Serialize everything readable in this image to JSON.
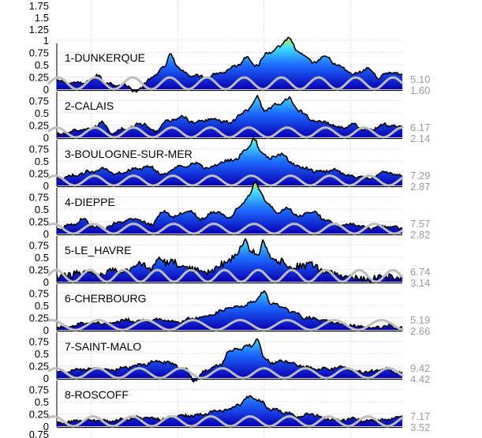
{
  "colors": {
    "fill_low": "#0a00b4",
    "fill_mid": "#1e6cff",
    "fill_high": "#40e0ff",
    "fill_peak": "#f0f000",
    "signal_line": "#000000",
    "tide_line": "#bdbdbd",
    "grid": "#c8c8c8",
    "right_values": "#9a9a9a"
  },
  "chart_data": {
    "type": "area",
    "layout": "vertically stacked panels",
    "grid": true,
    "x_gridlines_at": [
      0.1,
      0.35,
      0.6,
      0.85
    ],
    "top_axis_ticks": [
      "1.75",
      "1.5",
      "1.25"
    ],
    "panels": [
      {
        "station": "1-DUNKERQUE",
        "yticks": [
          "1",
          "0.75",
          "0.5",
          "0.25",
          "0"
        ],
        "ylim": [
          0,
          1.05
        ],
        "right_values": [
          "5.10",
          "1.60"
        ],
        "tide_cycles": 9.5,
        "tide_phase": 0.0,
        "tide_amplitude": 0.12,
        "keypoints": [
          [
            0,
            0.15
          ],
          [
            0.07,
            0.12
          ],
          [
            0.1,
            0.17
          ],
          [
            0.12,
            0.3
          ],
          [
            0.14,
            0.12
          ],
          [
            0.2,
            0.08
          ],
          [
            0.23,
            -0.05
          ],
          [
            0.27,
            0.2
          ],
          [
            0.31,
            0.45
          ],
          [
            0.33,
            0.7
          ],
          [
            0.35,
            0.45
          ],
          [
            0.38,
            0.3
          ],
          [
            0.43,
            0.25
          ],
          [
            0.48,
            0.35
          ],
          [
            0.52,
            0.48
          ],
          [
            0.55,
            0.65
          ],
          [
            0.58,
            0.48
          ],
          [
            0.61,
            0.75
          ],
          [
            0.64,
            0.85
          ],
          [
            0.67,
            1.05
          ],
          [
            0.7,
            0.75
          ],
          [
            0.74,
            0.55
          ],
          [
            0.78,
            0.65
          ],
          [
            0.82,
            0.45
          ],
          [
            0.86,
            0.3
          ],
          [
            0.9,
            0.42
          ],
          [
            0.93,
            0.25
          ],
          [
            0.97,
            0.35
          ],
          [
            1,
            0.3
          ]
        ]
      },
      {
        "station": "2-CALAIS",
        "yticks": [
          "0.75",
          "0.5",
          "0.25",
          "0"
        ],
        "ylim": [
          0,
          0.8
        ],
        "right_values": [
          "6.17",
          "2.14"
        ],
        "tide_cycles": 9.2,
        "tide_phase": 0.3,
        "tide_amplitude": 0.1,
        "keypoints": [
          [
            0,
            0.05
          ],
          [
            0.05,
            0.12
          ],
          [
            0.1,
            0.18
          ],
          [
            0.13,
            0.3
          ],
          [
            0.16,
            0.1
          ],
          [
            0.2,
            0.18
          ],
          [
            0.25,
            0.28
          ],
          [
            0.28,
            0.12
          ],
          [
            0.32,
            0.32
          ],
          [
            0.36,
            0.42
          ],
          [
            0.4,
            0.3
          ],
          [
            0.45,
            0.38
          ],
          [
            0.5,
            0.3
          ],
          [
            0.53,
            0.45
          ],
          [
            0.55,
            0.55
          ],
          [
            0.58,
            0.82
          ],
          [
            0.6,
            0.55
          ],
          [
            0.64,
            0.68
          ],
          [
            0.67,
            0.8
          ],
          [
            0.7,
            0.55
          ],
          [
            0.74,
            0.35
          ],
          [
            0.78,
            0.3
          ],
          [
            0.82,
            0.2
          ],
          [
            0.86,
            0.25
          ],
          [
            0.9,
            0.15
          ],
          [
            0.95,
            0.25
          ],
          [
            1,
            0.22
          ]
        ]
      },
      {
        "station": "3-BOULOGNE-SUR-MER",
        "yticks": [
          "0.75",
          "0.5",
          "0.25",
          "0"
        ],
        "ylim": [
          0,
          0.8
        ],
        "right_values": [
          "7.29",
          "2.87"
        ],
        "tide_cycles": 9.0,
        "tide_phase": 0.6,
        "tide_amplitude": 0.1,
        "keypoints": [
          [
            0,
            0.12
          ],
          [
            0.05,
            0.2
          ],
          [
            0.1,
            0.28
          ],
          [
            0.13,
            0.35
          ],
          [
            0.17,
            0.25
          ],
          [
            0.22,
            0.32
          ],
          [
            0.27,
            0.38
          ],
          [
            0.31,
            0.22
          ],
          [
            0.35,
            0.38
          ],
          [
            0.4,
            0.45
          ],
          [
            0.44,
            0.35
          ],
          [
            0.48,
            0.48
          ],
          [
            0.52,
            0.55
          ],
          [
            0.55,
            0.75
          ],
          [
            0.57,
            0.95
          ],
          [
            0.59,
            0.7
          ],
          [
            0.62,
            0.55
          ],
          [
            0.65,
            0.65
          ],
          [
            0.68,
            0.45
          ],
          [
            0.72,
            0.35
          ],
          [
            0.76,
            0.28
          ],
          [
            0.8,
            0.32
          ],
          [
            0.85,
            0.2
          ],
          [
            0.9,
            0.15
          ],
          [
            0.95,
            0.28
          ],
          [
            1,
            0.2
          ]
        ]
      },
      {
        "station": "4-DIEPPE",
        "yticks": [
          "0.75",
          "0.5",
          "0.25",
          "0"
        ],
        "ylim": [
          0,
          0.8
        ],
        "right_values": [
          "7.57",
          "2.82"
        ],
        "tide_cycles": 8.8,
        "tide_phase": 0.9,
        "tide_amplitude": 0.1,
        "keypoints": [
          [
            0,
            0.08
          ],
          [
            0.04,
            0.18
          ],
          [
            0.08,
            0.3
          ],
          [
            0.1,
            0.15
          ],
          [
            0.14,
            0.12
          ],
          [
            0.18,
            0.22
          ],
          [
            0.23,
            0.3
          ],
          [
            0.27,
            0.18
          ],
          [
            0.31,
            0.45
          ],
          [
            0.34,
            0.35
          ],
          [
            0.38,
            0.48
          ],
          [
            0.42,
            0.3
          ],
          [
            0.46,
            0.45
          ],
          [
            0.5,
            0.32
          ],
          [
            0.53,
            0.55
          ],
          [
            0.56,
            0.82
          ],
          [
            0.575,
            1.05
          ],
          [
            0.59,
            0.85
          ],
          [
            0.61,
            0.6
          ],
          [
            0.64,
            0.45
          ],
          [
            0.67,
            0.5
          ],
          [
            0.7,
            0.35
          ],
          [
            0.74,
            0.45
          ],
          [
            0.78,
            0.28
          ],
          [
            0.82,
            0.15
          ],
          [
            0.86,
            0.2
          ],
          [
            0.9,
            0.1
          ],
          [
            0.95,
            0.15
          ],
          [
            1,
            0.12
          ]
        ]
      },
      {
        "station": "5-LE_HAVRE",
        "yticks": [
          "0.75",
          "0.5",
          "0.25",
          "0"
        ],
        "ylim": [
          0,
          0.8
        ],
        "right_values": [
          "6.74",
          "3.14"
        ],
        "tide_cycles": 10.5,
        "tide_phase": 0.2,
        "tide_amplitude": 0.12,
        "keypoints": [
          [
            0,
            0.1
          ],
          [
            0.04,
            0.15
          ],
          [
            0.08,
            0.18
          ],
          [
            0.12,
            0.12
          ],
          [
            0.16,
            0.22
          ],
          [
            0.2,
            0.25
          ],
          [
            0.24,
            0.35
          ],
          [
            0.27,
            0.3
          ],
          [
            0.3,
            0.45
          ],
          [
            0.33,
            0.4
          ],
          [
            0.36,
            0.3
          ],
          [
            0.4,
            0.25
          ],
          [
            0.44,
            0.2
          ],
          [
            0.48,
            0.35
          ],
          [
            0.52,
            0.55
          ],
          [
            0.545,
            0.85
          ],
          [
            0.56,
            0.6
          ],
          [
            0.58,
            0.55
          ],
          [
            0.6,
            0.82
          ],
          [
            0.62,
            0.5
          ],
          [
            0.65,
            0.4
          ],
          [
            0.69,
            0.3
          ],
          [
            0.73,
            0.35
          ],
          [
            0.77,
            0.22
          ],
          [
            0.81,
            0.15
          ],
          [
            0.85,
            0.1
          ],
          [
            0.9,
            0.05
          ],
          [
            0.95,
            0.1
          ],
          [
            1,
            0.08
          ]
        ]
      },
      {
        "station": "6-CHERBOURG",
        "yticks": [
          "0.75",
          "0.5",
          "0.25",
          "0"
        ],
        "ylim": [
          0,
          0.8
        ],
        "right_values": [
          "5.19",
          "2.66"
        ],
        "tide_cycles": 7.5,
        "tide_phase": 1.2,
        "tide_amplitude": 0.1,
        "keypoints": [
          [
            0,
            0.04
          ],
          [
            0.05,
            0.1
          ],
          [
            0.1,
            0.15
          ],
          [
            0.15,
            0.12
          ],
          [
            0.2,
            0.2
          ],
          [
            0.25,
            0.18
          ],
          [
            0.3,
            0.2
          ],
          [
            0.35,
            0.15
          ],
          [
            0.4,
            0.25
          ],
          [
            0.45,
            0.32
          ],
          [
            0.5,
            0.45
          ],
          [
            0.54,
            0.5
          ],
          [
            0.57,
            0.58
          ],
          [
            0.6,
            0.78
          ],
          [
            0.62,
            0.55
          ],
          [
            0.65,
            0.48
          ],
          [
            0.68,
            0.38
          ],
          [
            0.72,
            0.25
          ],
          [
            0.76,
            0.2
          ],
          [
            0.8,
            0.15
          ],
          [
            0.84,
            0.1
          ],
          [
            0.88,
            0.06
          ],
          [
            0.92,
            0.05
          ],
          [
            0.96,
            0.08
          ],
          [
            1,
            0.04
          ]
        ]
      },
      {
        "station": "7-SAINT-MALO",
        "yticks": [
          "0.75",
          "0.5",
          "0.25",
          "0"
        ],
        "ylim": [
          0,
          0.8
        ],
        "right_values": [
          "9.42",
          "4.42"
        ],
        "tide_cycles": 8.5,
        "tide_phase": 0.5,
        "tide_amplitude": 0.1,
        "keypoints": [
          [
            0,
            0.1
          ],
          [
            0.05,
            0.15
          ],
          [
            0.1,
            0.2
          ],
          [
            0.15,
            0.15
          ],
          [
            0.2,
            0.22
          ],
          [
            0.25,
            0.28
          ],
          [
            0.29,
            0.35
          ],
          [
            0.33,
            0.3
          ],
          [
            0.37,
            0.18
          ],
          [
            0.4,
            -0.05
          ],
          [
            0.43,
            0.15
          ],
          [
            0.47,
            0.25
          ],
          [
            0.5,
            0.55
          ],
          [
            0.53,
            0.6
          ],
          [
            0.56,
            0.65
          ],
          [
            0.58,
            0.78
          ],
          [
            0.6,
            0.4
          ],
          [
            0.63,
            0.3
          ],
          [
            0.66,
            0.35
          ],
          [
            0.7,
            0.25
          ],
          [
            0.74,
            0.2
          ],
          [
            0.78,
            0.18
          ],
          [
            0.82,
            0.22
          ],
          [
            0.86,
            0.15
          ],
          [
            0.9,
            0.12
          ],
          [
            0.95,
            0.18
          ],
          [
            1,
            0.1
          ]
        ]
      },
      {
        "station": "8-ROSCOFF",
        "yticks": [
          "0.75",
          "0.5",
          "0.25",
          "0"
        ],
        "ylim": [
          0,
          0.8
        ],
        "right_values": [
          "7.17",
          "3.52"
        ],
        "tide_cycles": 9.0,
        "tide_phase": 0.8,
        "tide_amplitude": 0.1,
        "keypoints": [
          [
            0,
            0.05
          ],
          [
            0.05,
            0.1
          ],
          [
            0.1,
            0.12
          ],
          [
            0.15,
            0.1
          ],
          [
            0.2,
            0.15
          ],
          [
            0.25,
            0.18
          ],
          [
            0.3,
            0.15
          ],
          [
            0.35,
            0.2
          ],
          [
            0.4,
            0.22
          ],
          [
            0.45,
            0.28
          ],
          [
            0.5,
            0.35
          ],
          [
            0.53,
            0.45
          ],
          [
            0.56,
            0.62
          ],
          [
            0.59,
            0.5
          ],
          [
            0.62,
            0.35
          ],
          [
            0.66,
            0.28
          ],
          [
            0.7,
            0.2
          ],
          [
            0.74,
            0.25
          ],
          [
            0.78,
            0.15
          ],
          [
            0.82,
            0.12
          ],
          [
            0.86,
            0.15
          ],
          [
            0.9,
            0.1
          ],
          [
            0.95,
            0.12
          ],
          [
            1,
            0.2
          ]
        ]
      }
    ],
    "bottom_partial_tick": "0.75"
  }
}
